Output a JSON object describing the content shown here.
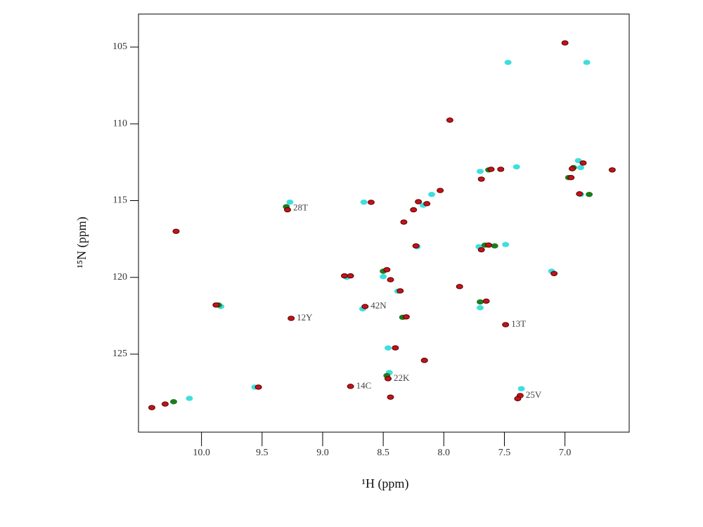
{
  "chart_data": {
    "type": "scatter",
    "xlabel": "¹H (ppm)",
    "ylabel": "¹⁵N (ppm)",
    "xlim": [
      10.52,
      6.47
    ],
    "ylim": [
      102.85,
      130.08
    ],
    "xticks": [
      {
        "value": 10,
        "label": "10.0"
      },
      9.5,
      {
        "value": 9,
        "label": "9.0"
      },
      8.5,
      {
        "value": 8,
        "label": "8.0"
      },
      7.5,
      {
        "value": 7,
        "label": "7.0"
      }
    ],
    "yticks": [
      105,
      110,
      115,
      120,
      125
    ],
    "series": [
      {
        "color": "#3fdede",
        "x": [
          7.47,
          6.82,
          7.4,
          6.89,
          6.87,
          6.87,
          7.7,
          8.66,
          9.27,
          8.1,
          8.17,
          7.49,
          7.71,
          8.22,
          8.5,
          8.38,
          7.11,
          7.7,
          9.84,
          8.67,
          8.45,
          9.56,
          7.36,
          10.1,
          8.8,
          8.46
        ],
        "values": [
          106.0,
          106.0,
          112.8,
          112.4,
          112.85,
          114.6,
          113.1,
          115.1,
          115.1,
          114.6,
          115.3,
          117.86,
          118.0,
          118.0,
          119.95,
          120.9,
          119.6,
          121.98,
          121.9,
          122.05,
          126.2,
          127.15,
          127.25,
          127.88,
          120.0,
          124.6
        ]
      },
      {
        "color": "#1f7a1f",
        "x": [
          7.66,
          7.58,
          6.97,
          6.93,
          7.63,
          8.5,
          8.34,
          10.23,
          9.86,
          6.8,
          8.16,
          8.47,
          7.7,
          9.3
        ],
        "values": [
          117.9,
          117.95,
          113.5,
          112.85,
          113.0,
          119.6,
          122.6,
          128.1,
          121.8,
          114.6,
          125.4,
          126.4,
          121.6,
          115.4
        ]
      },
      {
        "color": "#c0141a",
        "x": [
          7.0,
          7.95,
          6.61,
          6.85,
          6.94,
          6.95,
          6.88,
          7.61,
          7.53,
          7.69,
          8.03,
          8.21,
          8.14,
          8.25,
          8.6,
          8.33,
          9.29,
          10.21,
          8.23,
          7.63,
          7.69,
          8.47,
          8.44,
          8.82,
          8.77,
          8.36,
          7.87,
          7.09,
          7.65,
          9.88,
          8.65,
          9.26,
          8.31,
          7.49,
          8.4,
          8.16,
          8.46,
          8.77,
          9.53,
          8.44,
          7.37,
          7.39,
          10.3,
          10.41
        ],
        "values": [
          104.73,
          109.76,
          113.0,
          112.55,
          112.92,
          113.5,
          114.56,
          112.96,
          112.96,
          113.6,
          114.34,
          115.07,
          115.2,
          115.6,
          115.11,
          116.4,
          115.6,
          117.0,
          117.95,
          117.9,
          118.2,
          119.5,
          120.15,
          119.9,
          119.9,
          120.88,
          120.6,
          119.75,
          121.55,
          121.8,
          121.9,
          122.67,
          122.57,
          123.08,
          124.59,
          125.41,
          126.6,
          127.1,
          127.15,
          127.8,
          127.7,
          127.9,
          128.25,
          128.48
        ]
      }
    ],
    "annotations": [
      {
        "text": "28T",
        "x": 9.29,
        "y": 115.5
      },
      {
        "text": "12Y",
        "x": 9.26,
        "y": 122.67
      },
      {
        "text": "42N",
        "x": 8.65,
        "y": 121.9
      },
      {
        "text": "13T",
        "x": 7.49,
        "y": 123.08
      },
      {
        "text": "14C",
        "x": 8.77,
        "y": 127.1
      },
      {
        "text": "22K",
        "x": 8.46,
        "y": 126.6
      },
      {
        "text": "25V",
        "x": 7.37,
        "y": 127.7
      }
    ]
  }
}
